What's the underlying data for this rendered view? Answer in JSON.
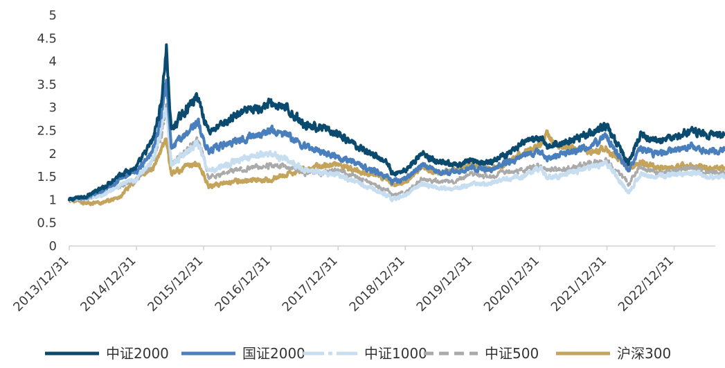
{
  "chart_data": {
    "type": "line",
    "title": "",
    "xlabel": "",
    "ylabel": "",
    "ylim": [
      0,
      5
    ],
    "yticks": [
      "0",
      "0.5",
      "1",
      "1.5",
      "2",
      "2.5",
      "3",
      "3.5",
      "4",
      "4.5",
      "5"
    ],
    "x": [
      "2013/12/31",
      "2014/03/31",
      "2014/06/30",
      "2014/09/30",
      "2014/12/31",
      "2015/03/31",
      "2015/05/15",
      "2015/06/12",
      "2015/07/08",
      "2015/09/15",
      "2015/11/30",
      "2015/12/31",
      "2016/01/28",
      "2016/03/31",
      "2016/06/30",
      "2016/09/30",
      "2016/12/31",
      "2017/03/31",
      "2017/06/30",
      "2017/09/30",
      "2017/12/31",
      "2018/03/31",
      "2018/06/30",
      "2018/09/30",
      "2018/10/18",
      "2018/12/31",
      "2019/03/31",
      "2019/06/30",
      "2019/09/30",
      "2019/12/31",
      "2020/03/31",
      "2020/06/30",
      "2020/09/30",
      "2020/12/31",
      "2021/02/10",
      "2021/03/31",
      "2021/06/30",
      "2021/09/30",
      "2021/12/31",
      "2022/04/26",
      "2022/06/30",
      "2022/09/30",
      "2022/12/31",
      "2023/03/31",
      "2023/06/30",
      "2023/09/30"
    ],
    "xticks": [
      "2013/12/31",
      "2014/12/31",
      "2015/12/31",
      "2016/12/31",
      "2017/12/31",
      "2018/12/31",
      "2019/12/31",
      "2020/12/31",
      "2021/12/31",
      "2022/12/31"
    ],
    "legend_position": "bottom",
    "grid": false,
    "series": [
      {
        "name": "中证2000",
        "color": "#0b4a6f",
        "dash": "solid",
        "values": [
          1.0,
          1.08,
          1.25,
          1.55,
          1.7,
          2.3,
          3.1,
          4.3,
          2.5,
          2.9,
          3.25,
          2.8,
          2.5,
          2.6,
          2.85,
          2.95,
          3.1,
          2.95,
          2.65,
          2.55,
          2.4,
          2.2,
          2.0,
          1.8,
          1.55,
          1.65,
          2.0,
          1.8,
          1.75,
          1.85,
          1.8,
          2.0,
          2.2,
          2.35,
          2.15,
          2.2,
          2.3,
          2.45,
          2.6,
          1.8,
          2.4,
          2.3,
          2.35,
          2.5,
          2.4,
          2.4
        ]
      },
      {
        "name": "国证2000",
        "color": "#4a7fbd",
        "dash": "solid",
        "values": [
          1.0,
          1.05,
          1.2,
          1.45,
          1.6,
          2.1,
          2.8,
          3.65,
          2.1,
          2.4,
          2.7,
          2.3,
          2.05,
          2.15,
          2.3,
          2.4,
          2.5,
          2.4,
          2.15,
          2.05,
          1.95,
          1.8,
          1.65,
          1.5,
          1.4,
          1.45,
          1.75,
          1.6,
          1.6,
          1.7,
          1.65,
          1.8,
          1.95,
          2.05,
          1.9,
          1.95,
          2.05,
          2.15,
          2.35,
          1.65,
          2.1,
          2.0,
          2.05,
          2.15,
          2.05,
          2.05
        ]
      },
      {
        "name": "中证1000",
        "color": "#c7ddf0",
        "dash": "solid",
        "values": [
          1.0,
          1.03,
          1.1,
          1.3,
          1.45,
          1.9,
          2.5,
          3.0,
          1.75,
          2.0,
          2.25,
          1.9,
          1.6,
          1.7,
          1.85,
          1.95,
          2.0,
          1.85,
          1.65,
          1.6,
          1.55,
          1.4,
          1.25,
          1.1,
          1.0,
          1.1,
          1.35,
          1.25,
          1.25,
          1.35,
          1.35,
          1.45,
          1.5,
          1.7,
          1.5,
          1.5,
          1.6,
          1.7,
          1.8,
          1.15,
          1.55,
          1.5,
          1.55,
          1.6,
          1.5,
          1.5
        ]
      },
      {
        "name": "中证500",
        "color": "#aaaaaa",
        "dash": "dashed",
        "values": [
          1.0,
          1.03,
          1.12,
          1.3,
          1.42,
          1.85,
          2.4,
          3.05,
          1.8,
          2.0,
          2.3,
          1.9,
          1.5,
          1.55,
          1.65,
          1.7,
          1.75,
          1.7,
          1.6,
          1.58,
          1.65,
          1.5,
          1.35,
          1.2,
          1.1,
          1.15,
          1.45,
          1.4,
          1.4,
          1.55,
          1.5,
          1.6,
          1.65,
          1.75,
          1.65,
          1.65,
          1.7,
          1.8,
          1.85,
          1.35,
          1.7,
          1.6,
          1.65,
          1.7,
          1.6,
          1.6
        ]
      },
      {
        "name": "沪深300",
        "color": "#c4a35a",
        "dash": "solid",
        "values": [
          1.0,
          0.93,
          0.95,
          1.05,
          1.45,
          1.7,
          2.1,
          2.3,
          1.55,
          1.7,
          1.8,
          1.55,
          1.3,
          1.35,
          1.4,
          1.43,
          1.45,
          1.55,
          1.65,
          1.75,
          1.75,
          1.65,
          1.55,
          1.45,
          1.3,
          1.4,
          1.7,
          1.6,
          1.65,
          1.75,
          1.65,
          1.8,
          2.0,
          2.2,
          2.45,
          2.2,
          2.15,
          2.05,
          2.1,
          1.7,
          1.8,
          1.7,
          1.7,
          1.75,
          1.7,
          1.7
        ]
      }
    ]
  }
}
